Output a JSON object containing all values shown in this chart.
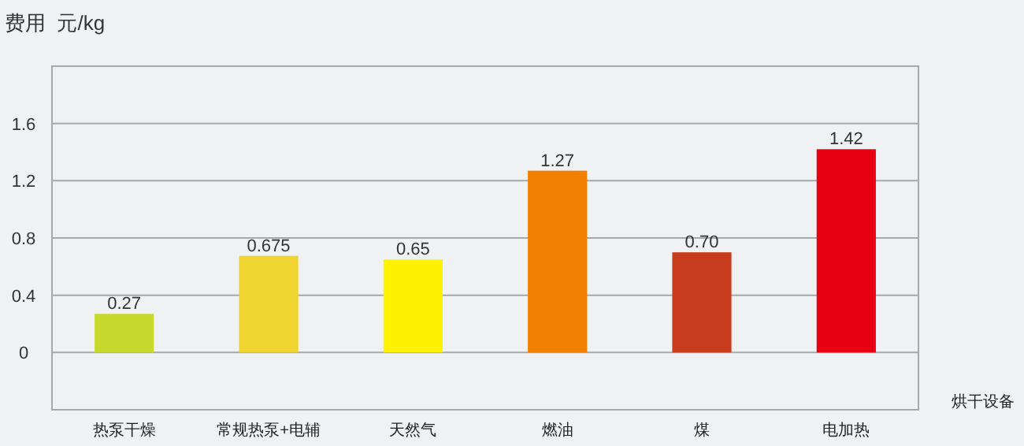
{
  "chart_data": {
    "type": "bar",
    "ylabel": "费用  元/kg",
    "xlabel": "烘干设备",
    "categories": [
      "热泵干燥",
      "常规热泵+电辅",
      "天然气",
      "燃油",
      "煤",
      "电加热"
    ],
    "values": [
      0.27,
      0.675,
      0.65,
      1.27,
      0.7,
      1.42
    ],
    "value_labels": [
      "0.27",
      "0.675",
      "0.65",
      "1.27",
      "0.70",
      "1.42"
    ],
    "colors": [
      "#c8d92e",
      "#f0d530",
      "#fff200",
      "#f08000",
      "#c83c1e",
      "#e60012"
    ],
    "ylim": [
      -0.4,
      2.0
    ],
    "yticks": [
      0,
      0.4,
      0.8,
      1.2,
      1.6
    ],
    "grid": "y"
  }
}
